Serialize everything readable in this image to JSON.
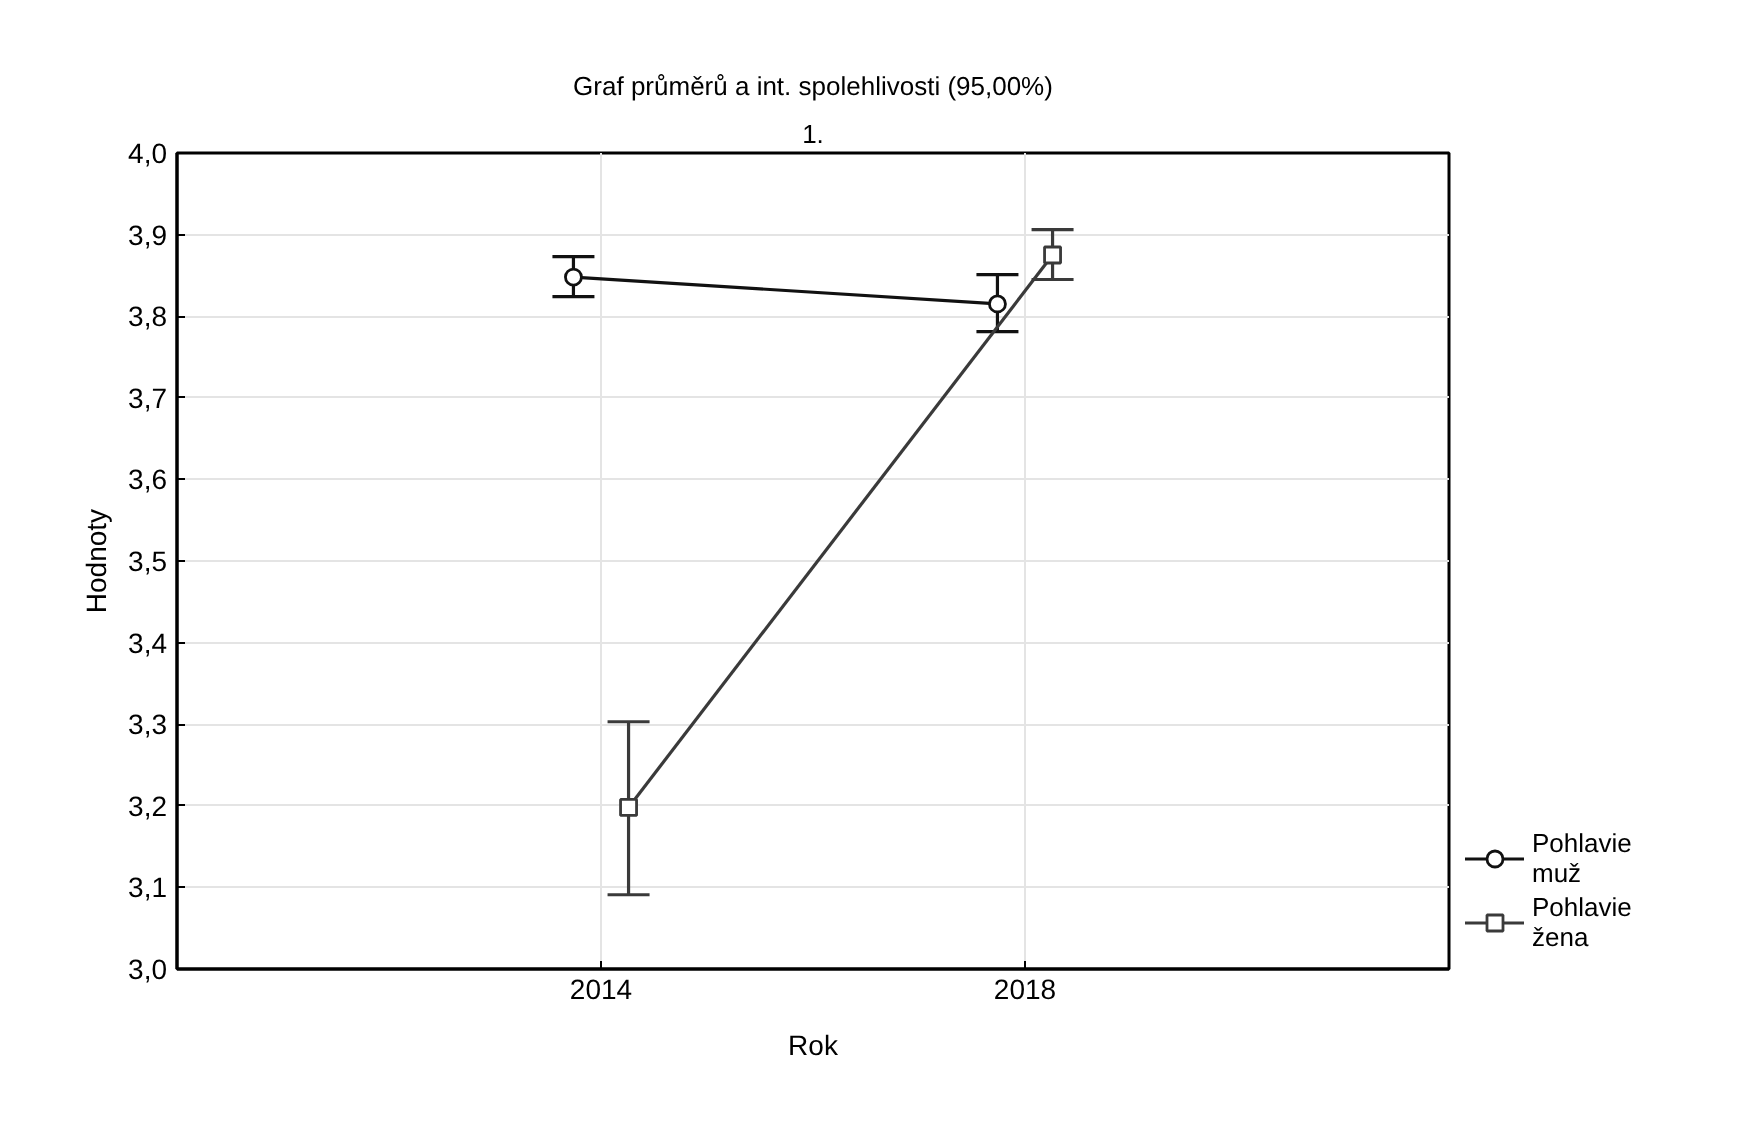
{
  "chart_data": {
    "type": "line",
    "title": "Graf průměrů a int. spolehlivosti (95,00%)",
    "subtitle": "1.",
    "xlabel": "Rok",
    "ylabel": "Hodnoty",
    "categories": [
      "2014",
      "2018"
    ],
    "ylim": [
      3.0,
      4.0
    ],
    "yticks": [
      {
        "value": 3.0,
        "label": "3,0"
      },
      {
        "value": 3.1,
        "label": "3,1"
      },
      {
        "value": 3.2,
        "label": "3,2"
      },
      {
        "value": 3.3,
        "label": "3,3"
      },
      {
        "value": 3.4,
        "label": "3,4"
      },
      {
        "value": 3.5,
        "label": "3,5"
      },
      {
        "value": 3.6,
        "label": "3,6"
      },
      {
        "value": 3.7,
        "label": "3,7"
      },
      {
        "value": 3.8,
        "label": "3,8"
      },
      {
        "value": 3.9,
        "label": "3,9"
      },
      {
        "value": 4.0,
        "label": "4,0"
      }
    ],
    "grid": true,
    "legend": "bottom right",
    "line_style": "solid",
    "series": [
      {
        "name": "Pohlavie muž",
        "color": "#111111",
        "marker": "circle",
        "values": [
          3.848,
          3.815
        ],
        "errors": [
          [
            3.824,
            3.873
          ],
          [
            3.781,
            3.851
          ]
        ]
      },
      {
        "name": "Pohlavie žena",
        "color": "#3a3a3a",
        "marker": "square",
        "values": [
          3.198,
          3.875
        ],
        "errors": [
          [
            3.091,
            3.303
          ],
          [
            3.845,
            3.906
          ]
        ]
      }
    ]
  }
}
